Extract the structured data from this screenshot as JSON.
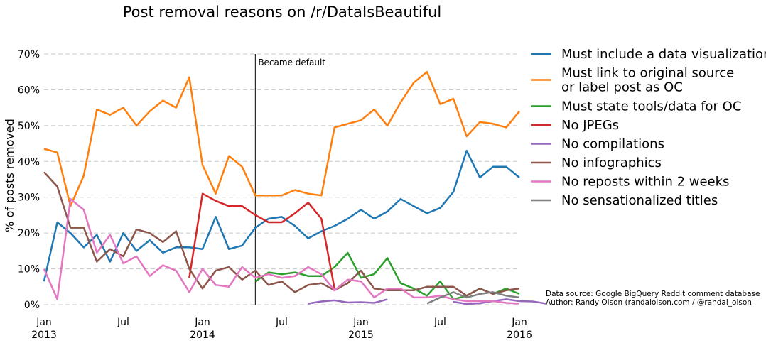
{
  "chart_data": {
    "type": "line",
    "title": "Post removal reasons on /r/DataIsBeautiful",
    "ylabel": "% of posts removed",
    "xlabel": "",
    "ylim": [
      0,
      70
    ],
    "xlim": [
      "2013-01",
      "2016-01"
    ],
    "grid": "horizontal dashed",
    "legend_position": "right",
    "y_ticks": [
      "0%",
      "10%",
      "20%",
      "30%",
      "40%",
      "50%",
      "60%",
      "70%"
    ],
    "x_ticks": [
      {
        "month": "2013-01",
        "label": "Jan",
        "year": "2013"
      },
      {
        "month": "2013-07",
        "label": "Jul",
        "year": ""
      },
      {
        "month": "2014-01",
        "label": "Jan",
        "year": "2014"
      },
      {
        "month": "2014-07",
        "label": "Jul",
        "year": ""
      },
      {
        "month": "2015-01",
        "label": "Jan",
        "year": "2015"
      },
      {
        "month": "2015-07",
        "label": "Jul",
        "year": ""
      },
      {
        "month": "2016-01",
        "label": "Jan",
        "year": "2016"
      }
    ],
    "annotation": {
      "month": "2014-05",
      "text": "Became default"
    },
    "source_lines": [
      "Data source: Google BigQuery Reddit comment database",
      "Author: Randy Olson (randalolson.com / @randal_olson"
    ],
    "series": [
      {
        "name": "Must include a data visualization",
        "color": "#1f77b4",
        "start": "2013-01",
        "values": [
          6.5,
          23,
          20,
          16,
          19.5,
          12,
          20,
          15,
          18,
          14.5,
          16,
          16,
          15.5,
          24.5,
          15.5,
          16.5,
          21.5,
          24,
          24.5,
          22,
          18.5,
          20.5,
          22,
          24,
          26.5,
          24,
          26,
          29.5,
          27.5,
          25.5,
          27,
          31.5,
          43,
          35.5,
          38.5,
          38.5,
          35.5
        ]
      },
      {
        "name": "Must link to original source\nor label post as OC",
        "color": "#ff7f0e",
        "start": "2013-01",
        "values": [
          43.5,
          42.5,
          27.5,
          36,
          54.5,
          53,
          55,
          50,
          54,
          57,
          55,
          63.5,
          39,
          31,
          41.5,
          38.5,
          30.5,
          30.5,
          30.5,
          32,
          31,
          30.5,
          49.5,
          50.5,
          51.5,
          54.5,
          50,
          56.5,
          62,
          65,
          56,
          57.5,
          47,
          51,
          50.5,
          49.5,
          54
        ]
      },
      {
        "name": "Must state tools/data for OC",
        "color": "#2ca02c",
        "start": "2014-05",
        "values": [
          6.5,
          9,
          8.5,
          9,
          8,
          8,
          10.5,
          14.5,
          7.5,
          8.5,
          13,
          6,
          4.5,
          2.5,
          6.5,
          1.5,
          2.5,
          4.5,
          3,
          4.5,
          3
        ]
      },
      {
        "name": "No JPEGs",
        "color": "#d62728",
        "start": "2013-12",
        "values": [
          7.5,
          31,
          29,
          27.5,
          27.5,
          25,
          23,
          23,
          25.5,
          28.5,
          24,
          4.5
        ]
      },
      {
        "name": "No compilations",
        "color": "#9467bd",
        "start": "2014-09",
        "values": [
          0.3,
          0.9,
          1.2,
          0.6,
          0.7,
          0.5,
          1.5,
          null,
          null,
          null,
          null,
          0.8,
          0.2,
          0.4,
          1,
          1.5,
          1,
          0.9,
          0.3
        ]
      },
      {
        "name": "No infographics",
        "color": "#8c564b",
        "start": "2013-01",
        "values": [
          37,
          33,
          21.5,
          21.5,
          12,
          15.5,
          13.5,
          21,
          20,
          17.5,
          20.5,
          10,
          4.5,
          9.5,
          10.5,
          7,
          9.5,
          5.5,
          6.5,
          3.5,
          5.5,
          6,
          4,
          6,
          9.5,
          4.5,
          4,
          4,
          4,
          5,
          5,
          5,
          2.5,
          4.5,
          3,
          4,
          4.5
        ]
      },
      {
        "name": "No reposts within 2 weeks",
        "color": "#e377c2",
        "start": "2013-01",
        "values": [
          10,
          1.5,
          29.5,
          26.5,
          14.5,
          19.5,
          11.5,
          13.5,
          8,
          11,
          9.5,
          3.5,
          10,
          5.5,
          5,
          10.5,
          7.5,
          8.5,
          7.5,
          8,
          10.5,
          8.5,
          4,
          7,
          6.5,
          2,
          4.5,
          4.5,
          2,
          2,
          2.5,
          1.5,
          1,
          1,
          1,
          0.5,
          0.3
        ]
      },
      {
        "name": "No sensationalized titles",
        "color": "#7f7f7f",
        "start": "2015-06",
        "values": [
          0.3,
          2,
          3.5,
          2,
          3,
          3.5,
          2.5,
          2
        ]
      }
    ]
  }
}
